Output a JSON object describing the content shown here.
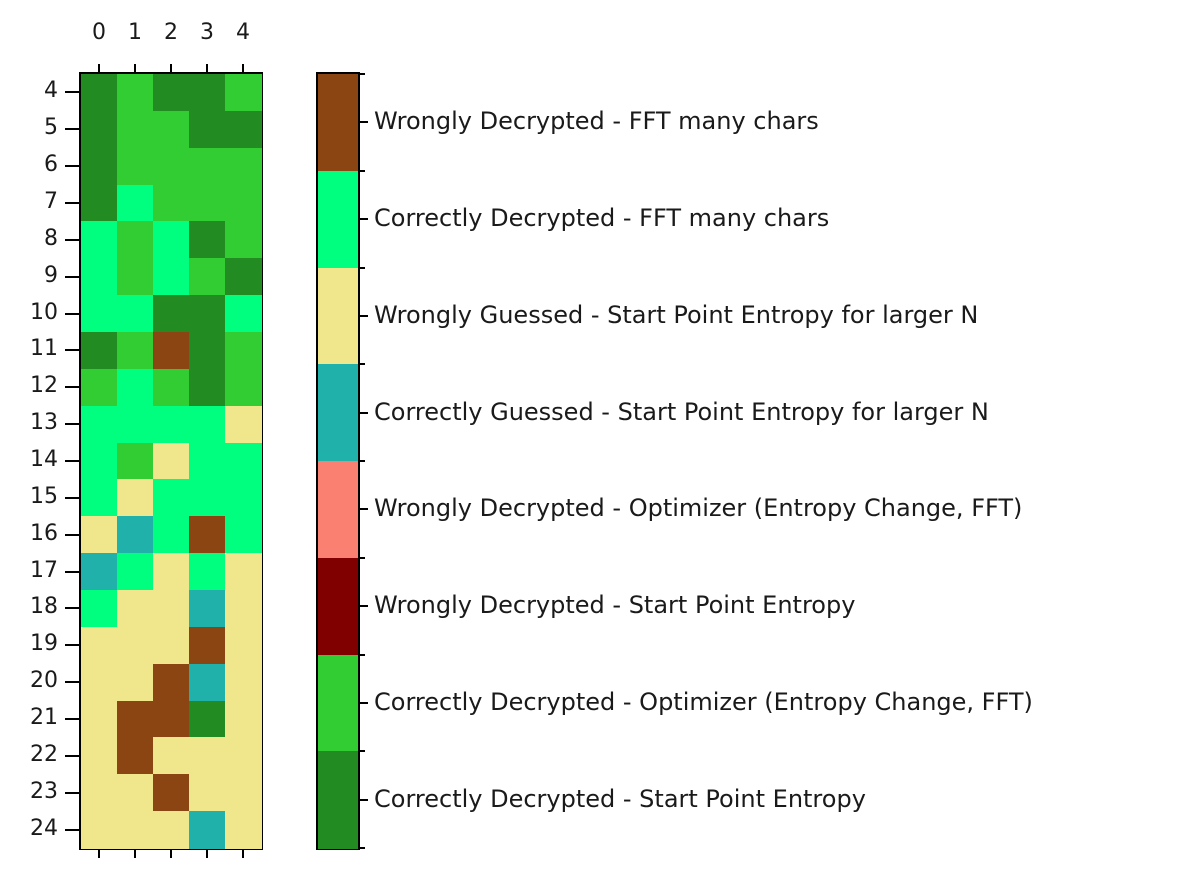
{
  "chart_data": {
    "type": "heatmap",
    "title": "",
    "xlabel": "",
    "ylabel": "",
    "x_ticks": [
      "0",
      "1",
      "2",
      "3",
      "4"
    ],
    "y_ticks": [
      "4",
      "5",
      "6",
      "7",
      "8",
      "9",
      "10",
      "11",
      "12",
      "13",
      "14",
      "15",
      "16",
      "17",
      "18",
      "19",
      "20",
      "21",
      "22",
      "23",
      "24"
    ],
    "categories": [
      {
        "id": "CD_SPE",
        "label": "Correctly Decrypted - Start Point Entropy",
        "color": "#228B22"
      },
      {
        "id": "CD_OPT",
        "label": "Correctly Decrypted - Optimizer (Entropy Change, FFT)",
        "color": "#32CD32"
      },
      {
        "id": "WD_SPE",
        "label": "Wrongly Decrypted - Start Point Entropy",
        "color": "#800000"
      },
      {
        "id": "WD_OPT",
        "label": "Wrongly Decrypted - Optimizer (Entropy Change, FFT)",
        "color": "#FA8072"
      },
      {
        "id": "CG_SPE",
        "label": "Correctly Guessed - Start Point Entropy for larger N",
        "color": "#20B2AA"
      },
      {
        "id": "WG_SPE",
        "label": "Wrongly Guessed - Start Point Entropy for larger N",
        "color": "#F0E68C"
      },
      {
        "id": "CD_FFT",
        "label": "Correctly Decrypted - FFT many chars",
        "color": "#00FF7F"
      },
      {
        "id": "WD_FFT",
        "label": "Wrongly Decrypted - FFT many chars",
        "color": "#8B4513"
      }
    ],
    "colorbar_order_top_to_bottom": [
      "WD_FFT",
      "CD_FFT",
      "WG_SPE",
      "CG_SPE",
      "WD_OPT",
      "WD_SPE",
      "CD_OPT",
      "CD_SPE"
    ],
    "rows": [
      {
        "y": "4",
        "values": [
          "CD_SPE",
          "CD_OPT",
          "CD_SPE",
          "CD_SPE",
          "CD_OPT"
        ]
      },
      {
        "y": "5",
        "values": [
          "CD_SPE",
          "CD_OPT",
          "CD_OPT",
          "CD_SPE",
          "CD_SPE"
        ]
      },
      {
        "y": "6",
        "values": [
          "CD_SPE",
          "CD_OPT",
          "CD_OPT",
          "CD_OPT",
          "CD_OPT"
        ]
      },
      {
        "y": "7",
        "values": [
          "CD_SPE",
          "CD_FFT",
          "CD_OPT",
          "CD_OPT",
          "CD_OPT"
        ]
      },
      {
        "y": "8",
        "values": [
          "CD_FFT",
          "CD_OPT",
          "CD_FFT",
          "CD_SPE",
          "CD_OPT"
        ]
      },
      {
        "y": "9",
        "values": [
          "CD_FFT",
          "CD_OPT",
          "CD_FFT",
          "CD_OPT",
          "CD_SPE"
        ]
      },
      {
        "y": "10",
        "values": [
          "CD_FFT",
          "CD_FFT",
          "CD_SPE",
          "CD_SPE",
          "CD_FFT"
        ]
      },
      {
        "y": "11",
        "values": [
          "CD_SPE",
          "CD_OPT",
          "WD_FFT",
          "CD_SPE",
          "CD_OPT"
        ]
      },
      {
        "y": "12",
        "values": [
          "CD_OPT",
          "CD_FFT",
          "CD_OPT",
          "CD_SPE",
          "CD_OPT"
        ]
      },
      {
        "y": "13",
        "values": [
          "CD_FFT",
          "CD_FFT",
          "CD_FFT",
          "CD_FFT",
          "WG_SPE"
        ]
      },
      {
        "y": "14",
        "values": [
          "CD_FFT",
          "CD_OPT",
          "WG_SPE",
          "CD_FFT",
          "CD_FFT"
        ]
      },
      {
        "y": "15",
        "values": [
          "CD_FFT",
          "WG_SPE",
          "CD_FFT",
          "CD_FFT",
          "CD_FFT"
        ]
      },
      {
        "y": "16",
        "values": [
          "WG_SPE",
          "CG_SPE",
          "CD_FFT",
          "WD_FFT",
          "CD_FFT"
        ]
      },
      {
        "y": "17",
        "values": [
          "CG_SPE",
          "CD_FFT",
          "WG_SPE",
          "CD_FFT",
          "WG_SPE"
        ]
      },
      {
        "y": "18",
        "values": [
          "CD_FFT",
          "WG_SPE",
          "WG_SPE",
          "CG_SPE",
          "WG_SPE"
        ]
      },
      {
        "y": "19",
        "values": [
          "WG_SPE",
          "WG_SPE",
          "WG_SPE",
          "WD_FFT",
          "WG_SPE"
        ]
      },
      {
        "y": "20",
        "values": [
          "WG_SPE",
          "WG_SPE",
          "WD_FFT",
          "CG_SPE",
          "WG_SPE"
        ]
      },
      {
        "y": "21",
        "values": [
          "WG_SPE",
          "WD_FFT",
          "WD_FFT",
          "CD_SPE",
          "WG_SPE"
        ]
      },
      {
        "y": "22",
        "values": [
          "WG_SPE",
          "WD_FFT",
          "WG_SPE",
          "WG_SPE",
          "WG_SPE"
        ]
      },
      {
        "y": "23",
        "values": [
          "WG_SPE",
          "WG_SPE",
          "WD_FFT",
          "WG_SPE",
          "WG_SPE"
        ]
      },
      {
        "y": "24",
        "values": [
          "WG_SPE",
          "WG_SPE",
          "WG_SPE",
          "CG_SPE",
          "WG_SPE"
        ]
      }
    ],
    "legend_position": "right (colorbar)",
    "grid": false
  }
}
